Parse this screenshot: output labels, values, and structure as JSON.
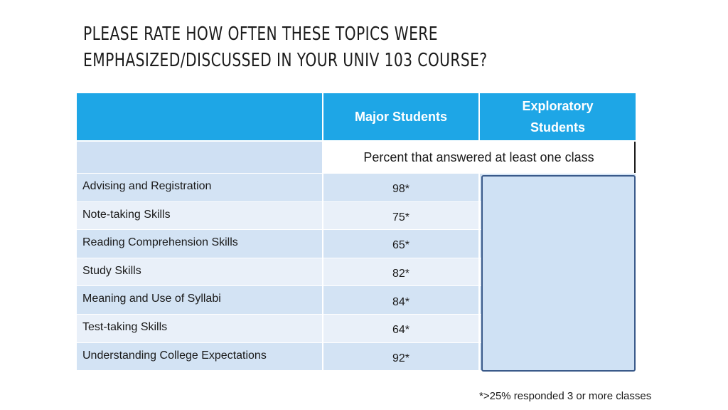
{
  "title": {
    "line1": "PLEASE RATE HOW OFTEN THESE TOPICS WERE",
    "line2": "EMPHASIZED/DISCUSSED IN YOUR UNIV 103 COURSE?"
  },
  "table": {
    "headers": [
      "",
      "Major Students",
      "Exploratory Students"
    ],
    "subheader": "Percent that answered at least one class",
    "rows": [
      {
        "topic": "Advising and Registration",
        "major": "98*",
        "exploratory": ""
      },
      {
        "topic": "Note-taking Skills",
        "major": "75*",
        "exploratory": ""
      },
      {
        "topic": "Reading Comprehension Skills",
        "major": "65*",
        "exploratory": ""
      },
      {
        "topic": "Study Skills",
        "major": "82*",
        "exploratory": ""
      },
      {
        "topic": "Meaning and Use of Syllabi",
        "major": "84*",
        "exploratory": ""
      },
      {
        "topic": "Test-taking Skills",
        "major": "64*",
        "exploratory": ""
      },
      {
        "topic": "Understanding College Expectations",
        "major": "92*",
        "exploratory": ""
      }
    ]
  },
  "footnote": "*>25% responded 3 or more classes",
  "colors": {
    "header_bg": "#1ea6e6",
    "row_dark": "#d3e3f4",
    "row_light": "#e9f0f9",
    "cover_box": "#cfe1f4"
  }
}
